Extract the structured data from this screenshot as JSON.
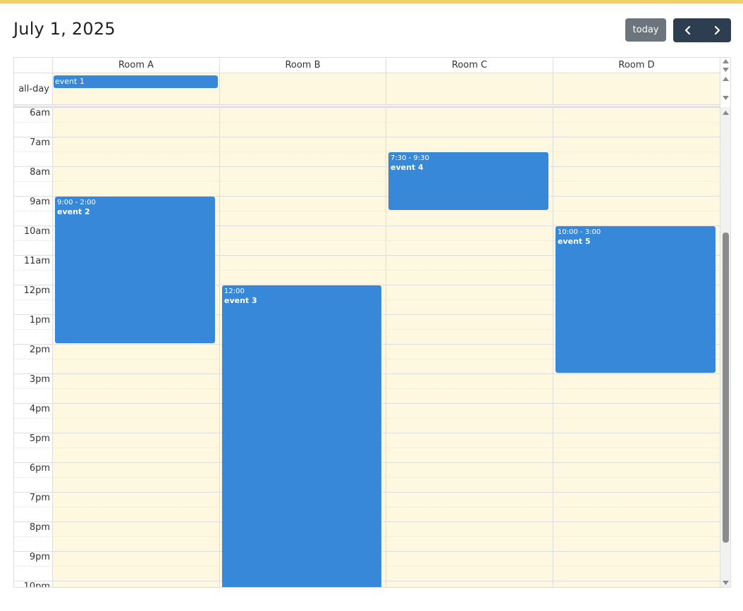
{
  "header": {
    "title": "July 1, 2025",
    "today_label": "today",
    "prev_icon": "chevron-left-icon",
    "next_icon": "chevron-right-icon"
  },
  "colors": {
    "accent_bar": "#f0cf6a",
    "event": "#3788d8",
    "today_bg": "#fff8e1",
    "nav_button": "#2c3e50",
    "today_button": "#6c757d"
  },
  "resources": [
    "Room A",
    "Room B",
    "Room C",
    "Room D"
  ],
  "allday_label": "all-day",
  "allday_events": [
    {
      "title": "event 1",
      "resource": "Room A"
    }
  ],
  "hours": [
    "6am",
    "7am",
    "8am",
    "9am",
    "10am",
    "11am",
    "12pm",
    "1pm",
    "2pm",
    "3pm",
    "4pm",
    "5pm",
    "6pm",
    "7pm",
    "8pm",
    "9pm",
    "10pm"
  ],
  "events": [
    {
      "time": "9:00 - 2:00",
      "title": "event 2",
      "resource": "Room A",
      "start": 9,
      "end": 14
    },
    {
      "time": "12:00",
      "title": "event 3",
      "resource": "Room B",
      "start": 12,
      "end": 22.5
    },
    {
      "time": "7:30 - 9:30",
      "title": "event 4",
      "resource": "Room C",
      "start": 7.5,
      "end": 9.5
    },
    {
      "time": "10:00 - 3:00",
      "title": "event 5",
      "resource": "Room D",
      "start": 10,
      "end": 15
    }
  ]
}
